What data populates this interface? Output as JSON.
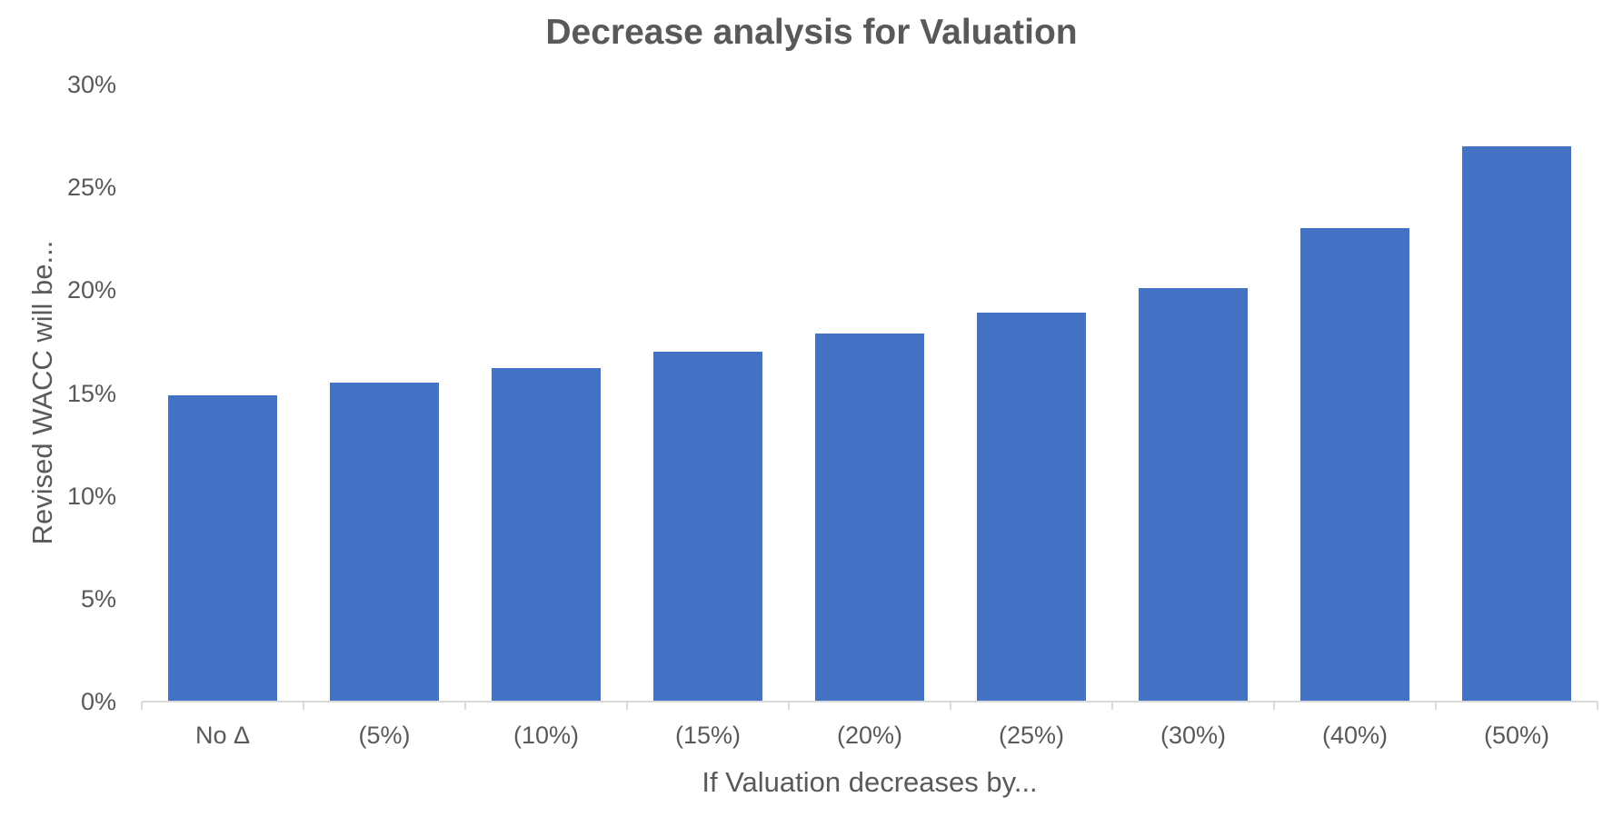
{
  "chart_data": {
    "type": "bar",
    "title": "Decrease analysis for Valuation",
    "xlabel": "If Valuation decreases by...",
    "ylabel": "Revised WACC will be...",
    "categories": [
      "No Δ",
      "(5%)",
      "(10%)",
      "(15%)",
      "(20%)",
      "(25%)",
      "(30%)",
      "(40%)",
      "(50%)"
    ],
    "values": [
      14.9,
      15.5,
      16.2,
      17.0,
      17.9,
      18.9,
      20.1,
      23.0,
      27.0
    ],
    "unit": "%",
    "ylim": [
      0,
      30
    ],
    "yticks": [
      {
        "value": 0,
        "label": "0%"
      },
      {
        "value": 5,
        "label": "5%"
      },
      {
        "value": 10,
        "label": "10%"
      },
      {
        "value": 15,
        "label": "15%"
      },
      {
        "value": 20,
        "label": "20%"
      },
      {
        "value": 25,
        "label": "25%"
      },
      {
        "value": 30,
        "label": "30%"
      }
    ],
    "grid": false,
    "legend": "none",
    "colors": {
      "bar": "#4472C4",
      "axis_line": "#D9D9D9",
      "text": "#595959",
      "background": "#FFFFFF"
    }
  }
}
